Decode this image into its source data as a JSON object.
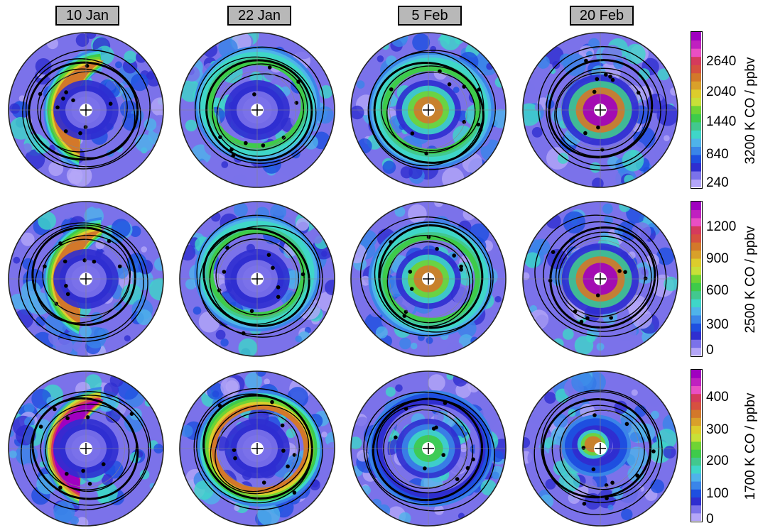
{
  "columns": [
    "10 Jan",
    "22 Jan",
    "5 Feb",
    "20 Feb"
  ],
  "colormap": [
    "#b4a6f8",
    "#7b72ea",
    "#2f2ed0",
    "#1e4fe0",
    "#3a85e8",
    "#4fb3ea",
    "#3fd6c8",
    "#42c88e",
    "#3ecb4a",
    "#6fd434",
    "#c8e038",
    "#dccd2c",
    "#d9a02a",
    "#d3782a",
    "#d65040",
    "#d53a5c",
    "#ea4fc4",
    "#c020c0",
    "#a000c0"
  ],
  "chart_data": [
    {
      "type": "heatmap",
      "row": 1,
      "level": "3200 K",
      "colorbar_label": "3200 K CO / ppbv",
      "colorbar_ticks": [
        240,
        840,
        1440,
        2040,
        2640
      ],
      "range": [
        240,
        3040
      ],
      "panels": [
        {
          "date": "10 Jan",
          "vortex_co": "low",
          "filament_co": "high",
          "shape": "crescent"
        },
        {
          "date": "22 Jan",
          "vortex_co": "low",
          "filament_co": "moderate",
          "shape": "horseshoe"
        },
        {
          "date": "5 Feb",
          "vortex_co": "high",
          "filament_co": "moderate",
          "shape": "ring"
        },
        {
          "date": "20 Feb",
          "vortex_co": "very high",
          "filament_co": "moderate",
          "shape": "oval"
        }
      ]
    },
    {
      "type": "heatmap",
      "row": 2,
      "level": "2500 K",
      "colorbar_label": "2500 K CO / ppbv",
      "colorbar_ticks": [
        0,
        300,
        600,
        900,
        1200
      ],
      "range": [
        0,
        1400
      ],
      "panels": [
        {
          "date": "10 Jan",
          "vortex_co": "low",
          "filament_co": "high",
          "shape": "crescent"
        },
        {
          "date": "22 Jan",
          "vortex_co": "low",
          "filament_co": "moderate",
          "shape": "horseshoe"
        },
        {
          "date": "5 Feb",
          "vortex_co": "high",
          "filament_co": "moderate",
          "shape": "ring"
        },
        {
          "date": "20 Feb",
          "vortex_co": "very high",
          "filament_co": "moderate",
          "shape": "oval"
        }
      ]
    },
    {
      "type": "heatmap",
      "row": 3,
      "level": "1700 K",
      "colorbar_label": "1700 K CO / ppbv",
      "colorbar_ticks": [
        0,
        100,
        200,
        300,
        400
      ],
      "range": [
        0,
        480
      ],
      "panels": [
        {
          "date": "10 Jan",
          "vortex_co": "low",
          "filament_co": "very high",
          "shape": "crescent"
        },
        {
          "date": "22 Jan",
          "vortex_co": "low",
          "filament_co": "high",
          "shape": "ring"
        },
        {
          "date": "5 Feb",
          "vortex_co": "moderate",
          "filament_co": "low",
          "shape": "ring"
        },
        {
          "date": "20 Feb",
          "vortex_co": "high",
          "filament_co": "low",
          "shape": "blob"
        }
      ]
    }
  ]
}
